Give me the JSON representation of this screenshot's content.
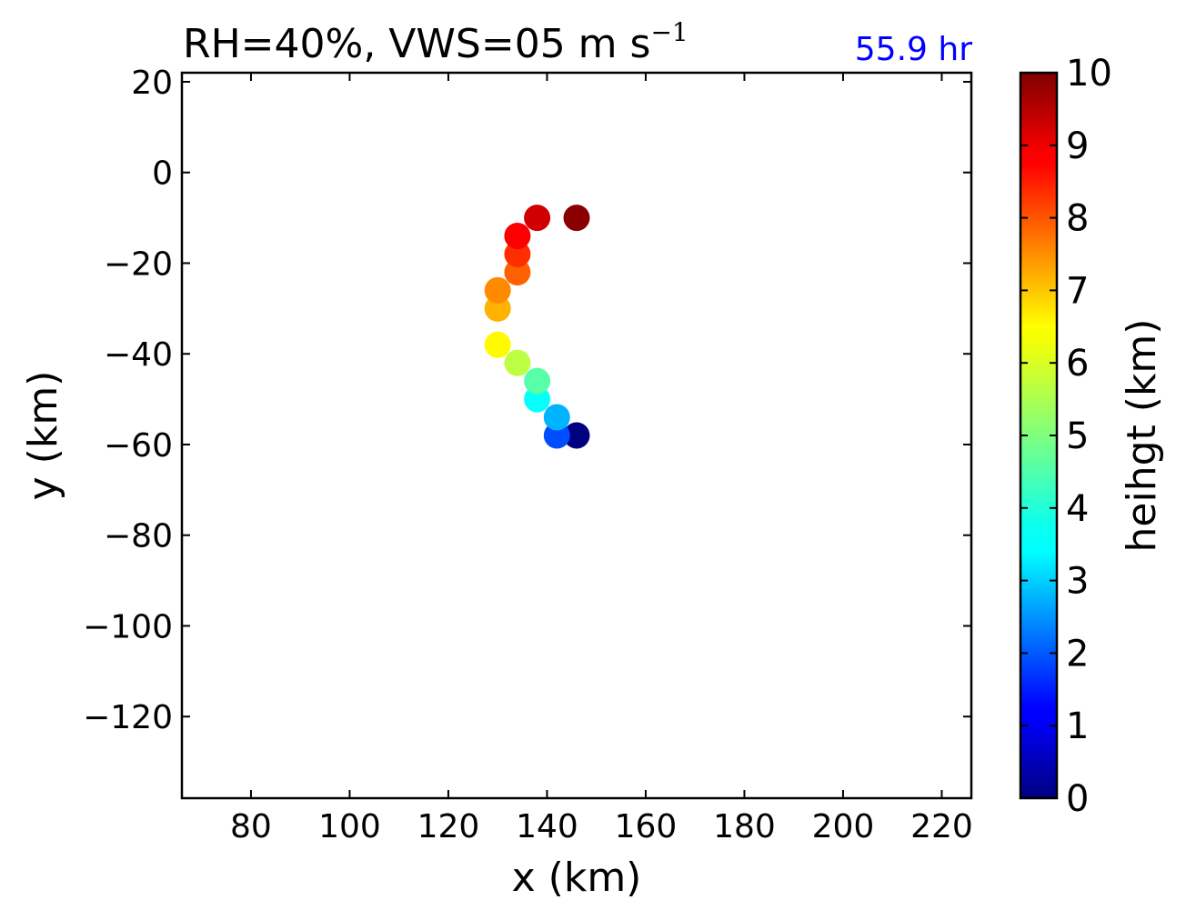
{
  "chart_data": {
    "type": "scatter",
    "title": "RH=40%, VWS=05 m s",
    "title_superscript": "−1",
    "title_right": "55.9 hr",
    "title_right_color": "#0000ff",
    "xlabel": "x (km)",
    "ylabel": "y (km)",
    "xlim": [
      66,
      226
    ],
    "ylim": [
      -138,
      22
    ],
    "xticks": [
      80,
      100,
      120,
      140,
      160,
      180,
      200,
      220
    ],
    "xtick_labels": [
      "80",
      "100",
      "120",
      "140",
      "160",
      "180",
      "200",
      "220"
    ],
    "yticks": [
      20,
      0,
      -20,
      -40,
      -60,
      -80,
      -100,
      -120
    ],
    "ytick_labels": [
      "20",
      "0",
      "−20",
      "−40",
      "−60",
      "−80",
      "−100",
      "−120"
    ],
    "grid": false,
    "colormap": "jet",
    "colorbar": {
      "label": "heihgt (km)",
      "range": [
        0,
        10
      ],
      "ticks": [
        0,
        1,
        2,
        3,
        4,
        5,
        6,
        7,
        8,
        9,
        10
      ],
      "tick_labels": [
        "0",
        "1",
        "2",
        "3",
        "4",
        "5",
        "6",
        "7",
        "8",
        "9",
        "10"
      ]
    },
    "points": [
      {
        "x": 146,
        "y": -58,
        "height": 0.0
      },
      {
        "x": 142,
        "y": -58,
        "height": 2.0
      },
      {
        "x": 142,
        "y": -54,
        "height": 3.0
      },
      {
        "x": 138,
        "y": -50,
        "height": 3.8
      },
      {
        "x": 138,
        "y": -46,
        "height": 4.6
      },
      {
        "x": 134,
        "y": -42,
        "height": 5.6
      },
      {
        "x": 130,
        "y": -38,
        "height": 6.3
      },
      {
        "x": 130,
        "y": -30,
        "height": 7.0
      },
      {
        "x": 130,
        "y": -26,
        "height": 7.4
      },
      {
        "x": 134,
        "y": -22,
        "height": 7.8
      },
      {
        "x": 134,
        "y": -18,
        "height": 8.3
      },
      {
        "x": 134,
        "y": -14,
        "height": 8.8
      },
      {
        "x": 138,
        "y": -10,
        "height": 9.2
      },
      {
        "x": 146,
        "y": -10,
        "height": 9.9
      }
    ]
  }
}
